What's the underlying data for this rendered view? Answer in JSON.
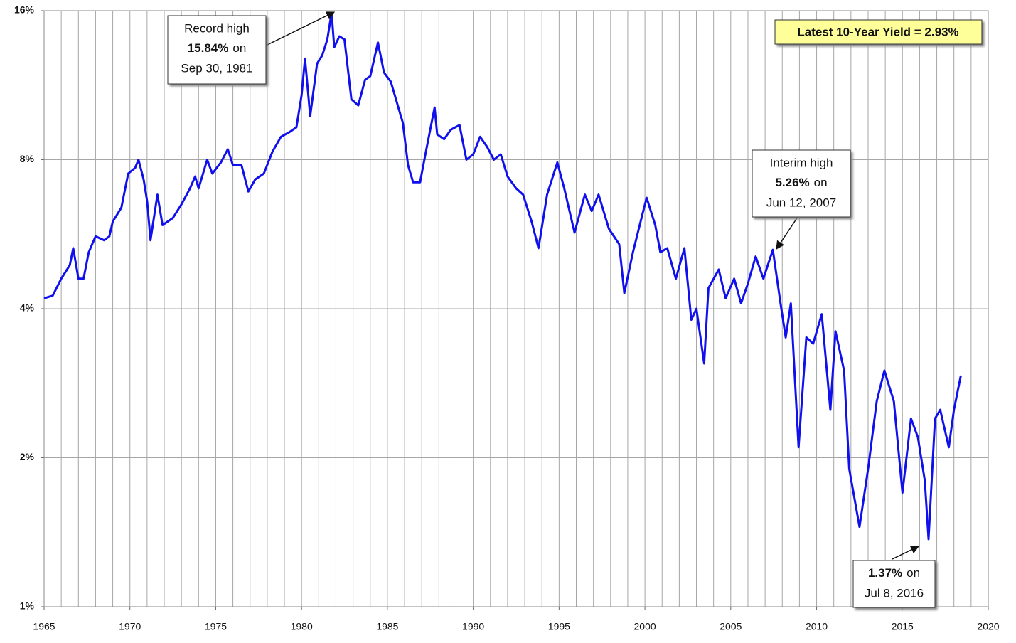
{
  "chart_data": {
    "type": "line",
    "log_y": true,
    "grid": true,
    "color": "#1010ee",
    "xlim": [
      1965,
      2020
    ],
    "xticks": [
      1965,
      1970,
      1975,
      1980,
      1985,
      1990,
      1995,
      2000,
      2005,
      2010,
      2015,
      2020
    ],
    "x_minor_ticks": [
      1966,
      1967,
      1968,
      1969,
      1971,
      1972,
      1973,
      1974,
      1976,
      1977,
      1978,
      1979,
      1981,
      1982,
      1983,
      1984,
      1986,
      1987,
      1988,
      1989,
      1991,
      1992,
      1993,
      1994,
      1996,
      1997,
      1998,
      1999,
      2001,
      2002,
      2003,
      2004,
      2006,
      2007,
      2008,
      2009,
      2011,
      2012,
      2013,
      2014,
      2016,
      2017,
      2018,
      2019
    ],
    "ylim": [
      1,
      16
    ],
    "yticks": [
      {
        "value": 1,
        "label": "1%"
      },
      {
        "value": 2,
        "label": "2%"
      },
      {
        "value": 4,
        "label": "4%"
      },
      {
        "value": 8,
        "label": "8%"
      },
      {
        "value": 16,
        "label": "16%"
      }
    ],
    "x": [
      1965.0,
      1965.5,
      1966.0,
      1966.5,
      1966.7,
      1967.0,
      1967.3,
      1967.6,
      1968.0,
      1968.5,
      1968.8,
      1969.0,
      1969.5,
      1969.9,
      1970.3,
      1970.5,
      1970.8,
      1971.0,
      1971.2,
      1971.6,
      1971.9,
      1972.5,
      1973.0,
      1973.5,
      1973.8,
      1974.0,
      1974.5,
      1974.8,
      1975.3,
      1975.7,
      1976.0,
      1976.5,
      1976.9,
      1977.3,
      1977.8,
      1978.3,
      1978.8,
      1979.3,
      1979.7,
      1980.0,
      1980.2,
      1980.5,
      1980.9,
      1981.2,
      1981.5,
      1981.75,
      1981.9,
      1982.2,
      1982.5,
      1982.9,
      1983.3,
      1983.7,
      1984.0,
      1984.45,
      1984.8,
      1985.2,
      1985.6,
      1985.9,
      1986.2,
      1986.5,
      1986.9,
      1987.3,
      1987.75,
      1987.9,
      1988.3,
      1988.7,
      1989.2,
      1989.6,
      1990.0,
      1990.4,
      1990.8,
      1991.2,
      1991.6,
      1992.0,
      1992.5,
      1992.9,
      1993.4,
      1993.8,
      1994.3,
      1994.9,
      1995.3,
      1995.9,
      1996.5,
      1996.9,
      1997.3,
      1997.9,
      1998.5,
      1998.8,
      1999.3,
      1999.9,
      2000.1,
      2000.6,
      2000.9,
      2001.3,
      2001.8,
      2002.3,
      2002.7,
      2003.0,
      2003.45,
      2003.7,
      2004.3,
      2004.7,
      2005.2,
      2005.6,
      2006.0,
      2006.45,
      2006.9,
      2007.45,
      2007.9,
      2008.2,
      2008.5,
      2008.95,
      2009.4,
      2009.8,
      2010.3,
      2010.8,
      2011.1,
      2011.6,
      2011.9,
      2012.5,
      2013.0,
      2013.5,
      2013.95,
      2014.5,
      2015.0,
      2015.5,
      2015.9,
      2016.3,
      2016.52,
      2016.9,
      2017.2,
      2017.7,
      2018.0,
      2018.4
    ],
    "values": [
      4.2,
      4.25,
      4.6,
      4.9,
      5.3,
      4.6,
      4.6,
      5.2,
      5.6,
      5.5,
      5.6,
      6.0,
      6.4,
      7.5,
      7.7,
      8.0,
      7.3,
      6.6,
      5.5,
      6.8,
      5.9,
      6.1,
      6.5,
      7.0,
      7.4,
      7.0,
      8.0,
      7.5,
      7.9,
      8.4,
      7.8,
      7.8,
      6.9,
      7.3,
      7.5,
      8.3,
      8.9,
      9.1,
      9.3,
      10.8,
      12.8,
      9.8,
      12.5,
      13.0,
      14.0,
      15.84,
      13.5,
      14.2,
      14.0,
      10.6,
      10.3,
      11.6,
      11.8,
      13.8,
      12.0,
      11.5,
      10.3,
      9.5,
      7.8,
      7.2,
      7.2,
      8.5,
      10.2,
      9.0,
      8.8,
      9.2,
      9.4,
      8.0,
      8.2,
      8.9,
      8.5,
      8.0,
      8.2,
      7.4,
      7.0,
      6.8,
      6.0,
      5.3,
      6.8,
      7.9,
      7.0,
      5.7,
      6.8,
      6.3,
      6.8,
      5.8,
      5.4,
      4.3,
      5.2,
      6.3,
      6.7,
      5.9,
      5.2,
      5.3,
      4.6,
      5.3,
      3.8,
      4.0,
      3.1,
      4.4,
      4.8,
      4.2,
      4.6,
      4.1,
      4.5,
      5.1,
      4.6,
      5.26,
      4.1,
      3.5,
      4.1,
      2.1,
      3.5,
      3.4,
      3.9,
      2.5,
      3.6,
      3.0,
      1.9,
      1.45,
      1.9,
      2.6,
      3.0,
      2.6,
      1.7,
      2.4,
      2.2,
      1.8,
      1.37,
      2.4,
      2.5,
      2.1,
      2.5,
      2.93
    ],
    "latest_label": "Latest 10-Year Yield = 2.93%",
    "annotations": [
      {
        "title": "Record high",
        "value": "15.84%",
        "on": "on",
        "date": "Sep 30, 1981"
      },
      {
        "title": "Interim high",
        "value": "5.26%",
        "on": "on",
        "date": "Jun 12, 2007"
      },
      {
        "value": "1.37%",
        "on": "on",
        "date": "Jul 8, 2016"
      }
    ]
  }
}
